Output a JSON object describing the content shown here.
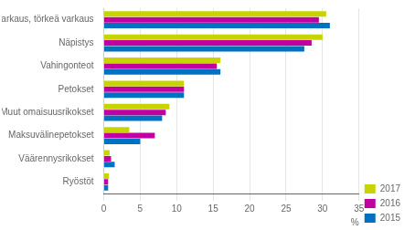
{
  "chart_data": {
    "type": "bar",
    "orientation": "horizontal",
    "categories": [
      "Varkaus, törkeä varkaus",
      "Näpistys",
      "Vahingonteot",
      "Petokset",
      "Muut omaisuusrikokset",
      "Maksuvälinepetokset",
      "Väärennysrikokset",
      "Ryöstöt"
    ],
    "series": [
      {
        "name": "2017",
        "color": "#c8d400",
        "values": [
          30.5,
          30.0,
          16.0,
          11.0,
          9.0,
          3.5,
          0.8,
          0.7
        ]
      },
      {
        "name": "2016",
        "color": "#c000a0",
        "values": [
          29.5,
          28.5,
          15.5,
          11.0,
          8.5,
          7.0,
          1.0,
          0.6
        ]
      },
      {
        "name": "2015",
        "color": "#0070c0",
        "values": [
          31.0,
          27.5,
          16.0,
          11.0,
          8.0,
          5.0,
          1.5,
          0.6
        ]
      }
    ],
    "xlabel": "%",
    "xlim": [
      0,
      35
    ],
    "xticks": [
      0,
      5,
      10,
      15,
      20,
      25,
      30,
      35
    ],
    "grid": true,
    "legend": "lower right"
  }
}
